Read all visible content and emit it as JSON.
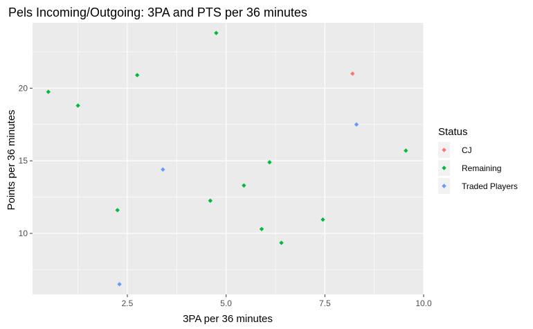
{
  "chart_data": {
    "type": "scatter",
    "title": "Pels Incoming/Outgoing: 3PA and PTS per 36 minutes",
    "xlabel": "3PA per 36 minutes",
    "ylabel": "Points per 36 minutes",
    "xlim": [
      0.1,
      10.0
    ],
    "ylim": [
      5.8,
      24.5
    ],
    "x_ticks": [
      2.5,
      5.0,
      7.5,
      10.0
    ],
    "x_tick_labels": [
      "2.5",
      "5.0",
      "7.5",
      "10.0"
    ],
    "y_ticks": [
      10,
      15,
      20
    ],
    "y_tick_labels": [
      "10",
      "15",
      "20"
    ],
    "grid": true,
    "legend": {
      "title": "Status",
      "placement": "right"
    },
    "series": [
      {
        "name": "CJ",
        "color": "#F8766D",
        "points": [
          {
            "x": 8.2,
            "y": 21.0
          }
        ]
      },
      {
        "name": "Remaining",
        "color": "#00BA38",
        "points": [
          {
            "x": 0.5,
            "y": 19.75
          },
          {
            "x": 1.25,
            "y": 18.8
          },
          {
            "x": 2.25,
            "y": 11.6
          },
          {
            "x": 2.75,
            "y": 20.9
          },
          {
            "x": 4.6,
            "y": 12.25
          },
          {
            "x": 4.75,
            "y": 23.8
          },
          {
            "x": 5.45,
            "y": 13.3
          },
          {
            "x": 5.9,
            "y": 10.3
          },
          {
            "x": 6.1,
            "y": 14.9
          },
          {
            "x": 6.4,
            "y": 9.35
          },
          {
            "x": 7.45,
            "y": 10.95
          },
          {
            "x": 9.55,
            "y": 15.7
          }
        ]
      },
      {
        "name": "Traded Players",
        "color": "#619CFF",
        "points": [
          {
            "x": 2.3,
            "y": 6.5
          },
          {
            "x": 3.4,
            "y": 14.4
          },
          {
            "x": 8.3,
            "y": 17.5
          }
        ]
      }
    ]
  }
}
